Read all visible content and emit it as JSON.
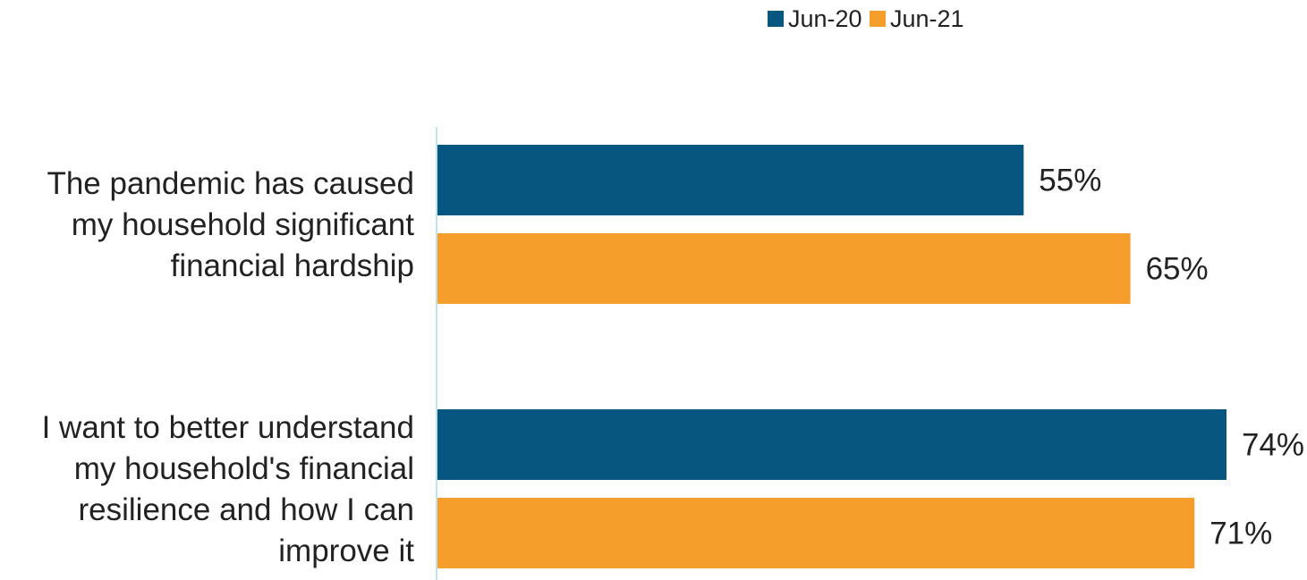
{
  "chart_data": {
    "type": "bar",
    "orientation": "horizontal",
    "categories": [
      [
        "The pandemic has caused",
        "my household significant",
        "financial hardship"
      ],
      [
        "I want to better understand",
        "my household's financial",
        "resilience and how I can",
        "improve it"
      ]
    ],
    "series": [
      {
        "name": "Jun-20",
        "color": "#07567f",
        "values": [
          55,
          74
        ],
        "labels": [
          "55%",
          "74%"
        ]
      },
      {
        "name": "Jun-21",
        "color": "#f59e2b",
        "values": [
          65,
          71
        ],
        "labels": [
          "65%",
          "71%"
        ]
      }
    ],
    "xlim": [
      0,
      74
    ],
    "axis_line_color": "#a8d8e8",
    "legend_position": "top-right",
    "grid": false
  }
}
